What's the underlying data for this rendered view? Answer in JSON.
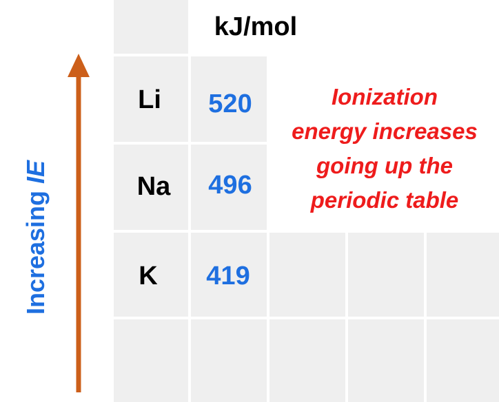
{
  "unit_label": "kJ/mol",
  "elements": [
    {
      "symbol": "Li",
      "ie": "520"
    },
    {
      "symbol": "Na",
      "ie": "496"
    },
    {
      "symbol": "K",
      "ie": "419"
    }
  ],
  "note_lines": [
    "Ionization",
    "energy increases",
    "going up the",
    "periodic table"
  ],
  "axis_label": {
    "prefix": "Increasing ",
    "emphasis": "IE"
  },
  "colors": {
    "cell_bg": "#efefef",
    "value_text": "#1e6fe0",
    "note_text": "#ee1c1c",
    "arrow": "#cc5f1a",
    "axis_label": "#1e6fe0"
  }
}
